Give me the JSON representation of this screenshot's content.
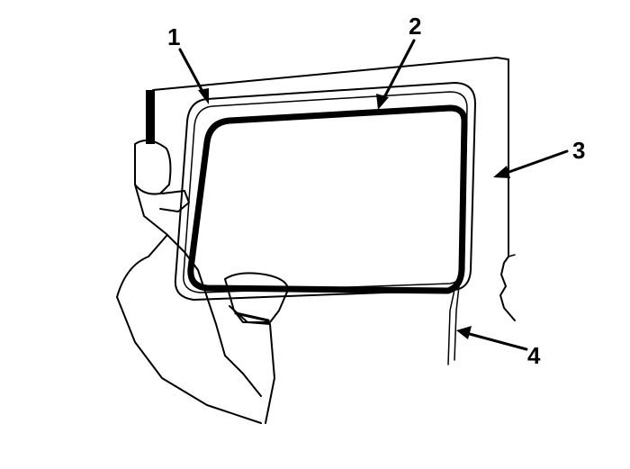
{
  "figure": {
    "callouts": [
      {
        "id": "1",
        "label": "1"
      },
      {
        "id": "2",
        "label": "2"
      },
      {
        "id": "3",
        "label": "3"
      },
      {
        "id": "4",
        "label": "4"
      }
    ]
  },
  "colors": {
    "ink": "#000000",
    "paper": "#ffffff"
  }
}
